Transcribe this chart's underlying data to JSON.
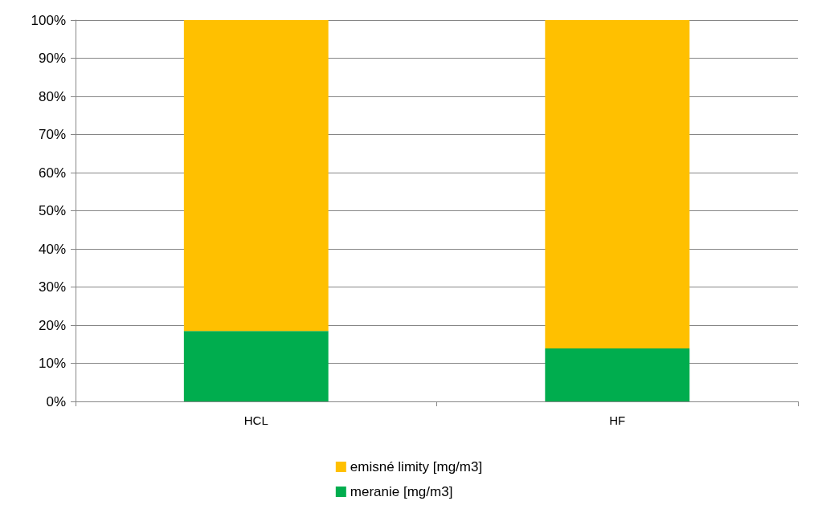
{
  "chart_data": {
    "type": "bar",
    "stacked": true,
    "categories": [
      "HCL",
      "HF"
    ],
    "series": [
      {
        "name": "meranie [mg/m3]",
        "color": "#00ad4e",
        "values": [
          18.5,
          13.9
        ]
      },
      {
        "name": "emisné limity [mg/m3]",
        "color": "#ffc000",
        "values": [
          81.5,
          86.1
        ]
      }
    ],
    "ylim": [
      0,
      100
    ],
    "yticks": [
      {
        "value": 0,
        "label": "0%"
      },
      {
        "value": 10,
        "label": "10%"
      },
      {
        "value": 20,
        "label": "20%"
      },
      {
        "value": 30,
        "label": "30%"
      },
      {
        "value": 40,
        "label": "40%"
      },
      {
        "value": 50,
        "label": "50%"
      },
      {
        "value": 60,
        "label": "60%"
      },
      {
        "value": 70,
        "label": "70%"
      },
      {
        "value": 80,
        "label": "80%"
      },
      {
        "value": 90,
        "label": "90%"
      },
      {
        "value": 100,
        "label": "100%"
      }
    ],
    "grid": "y",
    "legend": "bottom"
  }
}
